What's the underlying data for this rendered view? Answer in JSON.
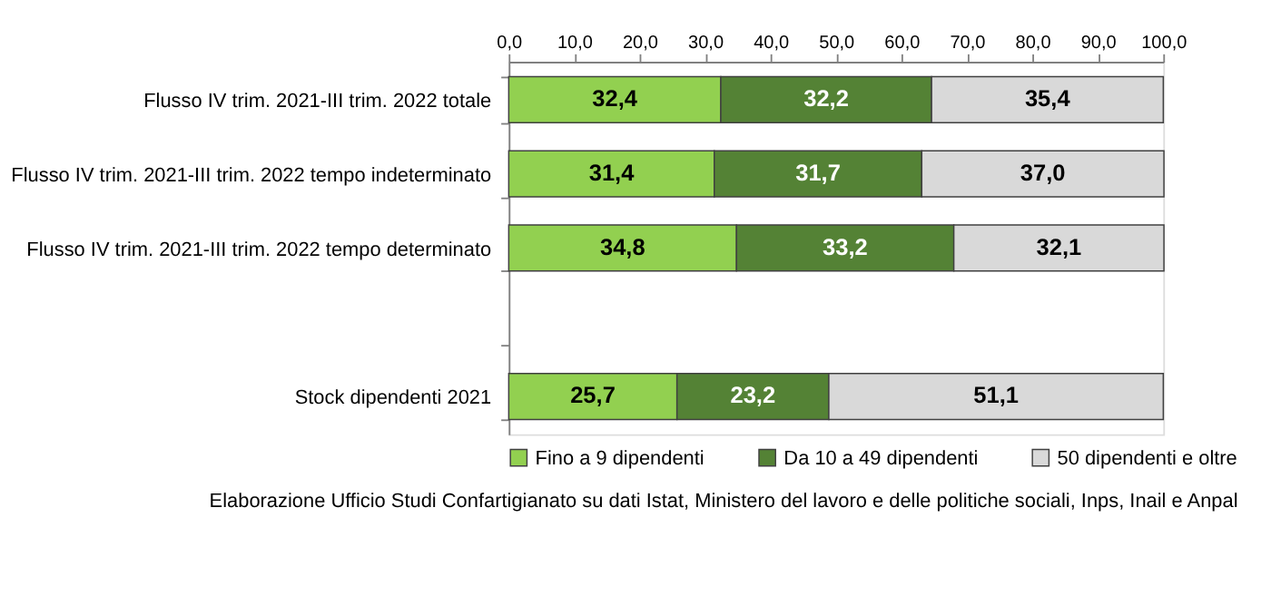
{
  "chart_data": {
    "type": "bar",
    "orientation": "horizontal",
    "stacked": true,
    "categories": [
      "Flusso IV trim. 2021-III trim. 2022 totale",
      "Flusso IV trim. 2021-III trim. 2022 tempo indeterminato",
      "Flusso IV trim. 2021-III trim. 2022 tempo determinato",
      null,
      "Stock dipendenti 2021"
    ],
    "series": [
      {
        "name": "Fino a 9 dipendenti",
        "color": "#92d050",
        "values": [
          32.4,
          31.4,
          34.8,
          null,
          25.7
        ],
        "value_labels": [
          "32,4",
          "31,4",
          "34,8",
          null,
          "25,7"
        ]
      },
      {
        "name": "Da 10 a 49 dipendenti",
        "color": "#548235",
        "values": [
          32.2,
          31.7,
          33.2,
          null,
          23.2
        ],
        "value_labels": [
          "32,2",
          "31,7",
          "33,2",
          null,
          "23,2"
        ]
      },
      {
        "name": "50 dipendenti e oltre",
        "color": "#d9d9d9",
        "values": [
          35.4,
          37.0,
          32.1,
          null,
          51.1
        ],
        "value_labels": [
          "35,4",
          "37,0",
          "32,1",
          null,
          "51,1"
        ]
      }
    ],
    "xlim": [
      0,
      100
    ],
    "xticks": [
      {
        "value": 0,
        "label": "0,0"
      },
      {
        "value": 10,
        "label": "10,0"
      },
      {
        "value": 20,
        "label": "20,0"
      },
      {
        "value": 30,
        "label": "30,0"
      },
      {
        "value": 40,
        "label": "40,0"
      },
      {
        "value": 50,
        "label": "50,0"
      },
      {
        "value": 60,
        "label": "60,0"
      },
      {
        "value": 70,
        "label": "70,0"
      },
      {
        "value": 80,
        "label": "80,0"
      },
      {
        "value": 90,
        "label": "90,0"
      },
      {
        "value": 100,
        "label": "100,0"
      }
    ],
    "grid": false,
    "legend": "bottom",
    "annotations": [
      "Elaborazione Ufficio Studi Confartigianato su dati Istat, Ministero del lavoro e delle politiche sociali, Inps, Inail e Anpal"
    ]
  }
}
